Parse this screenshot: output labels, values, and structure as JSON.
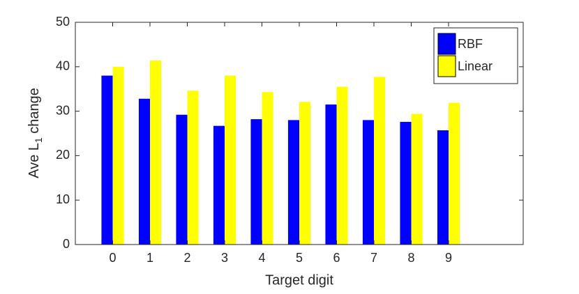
{
  "chart_data": {
    "type": "bar",
    "xlabel": "Target digit",
    "ylabel": [
      "Ave L",
      "1",
      " change"
    ],
    "x": [
      0,
      1,
      2,
      3,
      4,
      5,
      6,
      7,
      8,
      9
    ],
    "series": [
      {
        "name": "RBF",
        "color": "#0000ff",
        "values": [
          38,
          32.8,
          29.2,
          26.7,
          28.2,
          28,
          31.5,
          28,
          27.6,
          25.7
        ]
      },
      {
        "name": "Linear",
        "color": "#ffff00",
        "values": [
          40,
          41.4,
          34.6,
          38,
          34.3,
          32.1,
          35.5,
          37.7,
          29.4,
          31.9
        ]
      }
    ],
    "xlim": [
      -1,
      11
    ],
    "xticks": [
      0,
      1,
      2,
      3,
      4,
      5,
      6,
      7,
      8,
      9
    ],
    "ylim": [
      0,
      50
    ],
    "yticks": [
      0,
      10,
      20,
      30,
      40,
      50
    ],
    "legend": "top-right"
  }
}
